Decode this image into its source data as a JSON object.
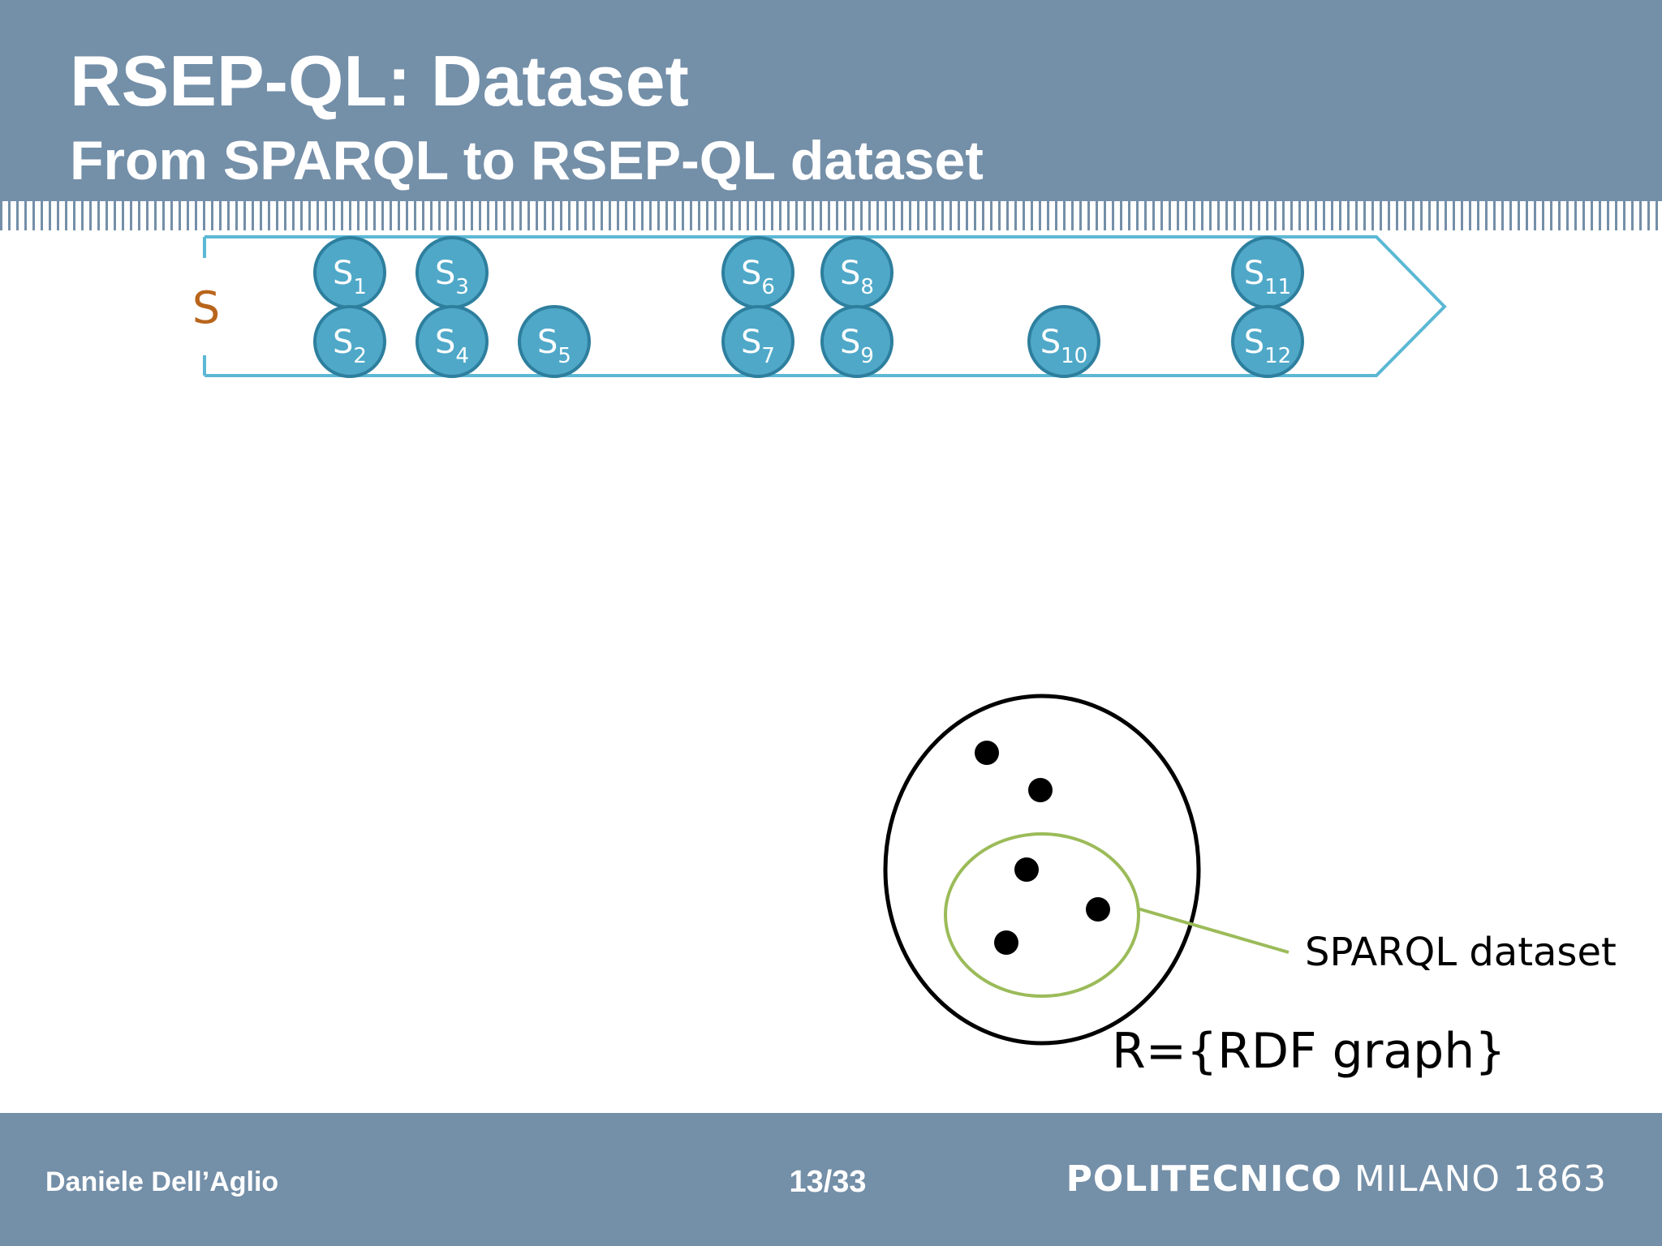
{
  "slide": {
    "title": "RSEP-QL: Dataset",
    "subtitle": "From SPARQL to RSEP-QL dataset"
  },
  "stream": {
    "label": "S",
    "elements": [
      {
        "base": "S",
        "sub": "1"
      },
      {
        "base": "S",
        "sub": "2"
      },
      {
        "base": "S",
        "sub": "3"
      },
      {
        "base": "S",
        "sub": "4"
      },
      {
        "base": "S",
        "sub": "5"
      },
      {
        "base": "S",
        "sub": "6"
      },
      {
        "base": "S",
        "sub": "7"
      },
      {
        "base": "S",
        "sub": "8"
      },
      {
        "base": "S",
        "sub": "9"
      },
      {
        "base": "S",
        "sub": "10"
      },
      {
        "base": "S",
        "sub": "11"
      },
      {
        "base": "S",
        "sub": "12"
      }
    ]
  },
  "graph_set": {
    "label": "R={RDF graph}",
    "subset_label": "SPARQL dataset",
    "outer_point_count": 2,
    "inner_point_count": 3
  },
  "colors": {
    "header_bg": "#748fa8",
    "stream_border": "#5bb8d4",
    "bubble_fill": "#4fa8c8",
    "bubble_stroke": "#2e7f9e",
    "stream_label": "#b8651b",
    "subset_stroke": "#9bbb59"
  },
  "footer": {
    "author": "Daniele Dell’Aglio",
    "page": "13/33",
    "logo_bold": "POLITECNICO",
    "logo_rest": " MILANO 1863"
  }
}
